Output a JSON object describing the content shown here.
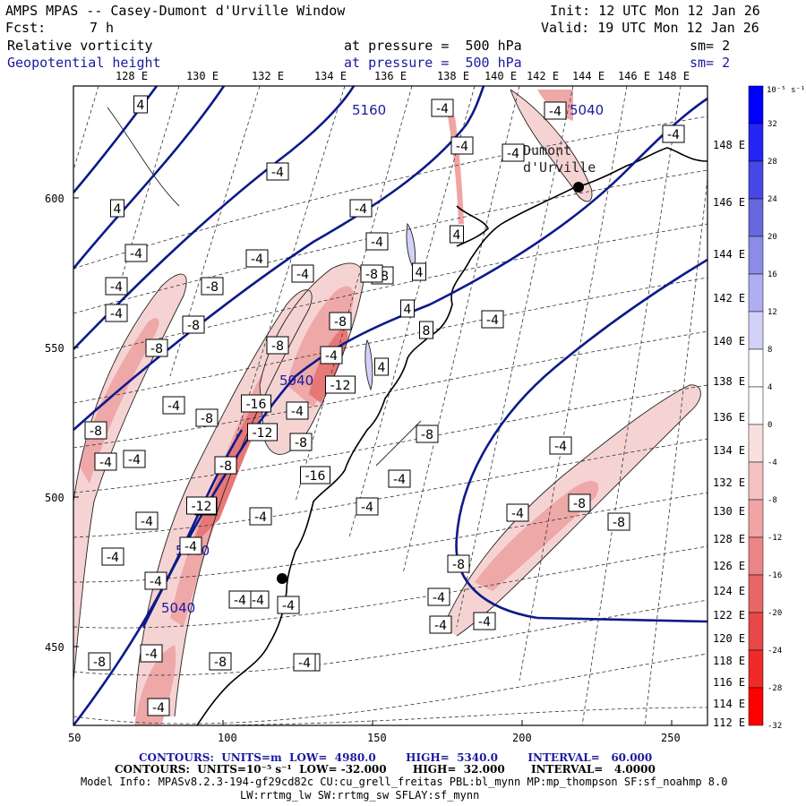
{
  "header": {
    "title": "AMPS MPAS -- Casey-Dumont d'Urville Window",
    "fcst_label": "Fcst:",
    "fcst_value": "7 h",
    "init": "Init: 12 UTC Mon 12 Jan 26",
    "valid": "Valid: 19 UTC Mon 12 Jan 26",
    "field1": "Relative vorticity",
    "field1_level": "at pressure =  500 hPa",
    "field1_sm": "sm= 2",
    "field2": "Geopotential height",
    "field2_level": "at pressure =  500 hPa",
    "field2_sm": "sm= 2"
  },
  "top_lon_labels": [
    "128 E",
    "130 E",
    "132 E",
    "134 E",
    "136 E",
    "138 E",
    "140 E",
    "142 E",
    "144 E",
    "146 E",
    "148 E"
  ],
  "right_lon_labels": [
    "148 E",
    "146 E",
    "144 E",
    "142 E",
    "140 E",
    "138 E",
    "136 E",
    "134 E",
    "132 E",
    "130 E",
    "128 E",
    "126 E",
    "124 E",
    "122 E",
    "120 E",
    "118 E",
    "116 E",
    "114 E",
    "112 E"
  ],
  "x_ticks": [
    "50",
    "100",
    "150",
    "200",
    "250"
  ],
  "y_ticks": [
    "600",
    "550",
    "500",
    "450"
  ],
  "colorbar": {
    "unit": "10⁻⁵ s⁻¹",
    "labels": [
      "32",
      "28",
      "24",
      "20",
      "16",
      "12",
      "8",
      "4",
      "0",
      "-4",
      "-8",
      "-12",
      "-16",
      "-20",
      "-24",
      "-28",
      "-32"
    ],
    "colors": [
      "#0000ff",
      "#2525f3",
      "#4747e8",
      "#6767e0",
      "#8c8ce8",
      "#aeaef0",
      "#d2d2f8",
      "#ffffff",
      "#ffffff",
      "#f8e0e0",
      "#f4c2c2",
      "#f0a4a4",
      "#ec8585",
      "#e86666",
      "#e84848",
      "#f02a2a",
      "#ff0000"
    ]
  },
  "height_labels": [
    "5160",
    "5040",
    "5040",
    "5040",
    "5040"
  ],
  "vort_labels": [
    "4",
    "-4",
    "-4",
    "4",
    "-8",
    "4",
    "-4",
    "-4",
    "-4",
    "4",
    "-4",
    "-4",
    "-4",
    "8",
    "-4",
    "-8",
    "-8",
    "-8",
    "4",
    "-4",
    "-8",
    "-8",
    "-8",
    "-4",
    "4",
    "-4",
    "-4",
    "-12",
    "-4",
    "-16",
    "-4",
    "-8",
    "-8",
    "-12",
    "-4",
    "-8",
    "-4",
    "-8",
    "-4",
    "-16",
    "-4",
    "-8",
    "-4",
    "-4",
    "-4",
    "-12",
    "-8",
    "-4",
    "-8",
    "-4",
    "-4",
    "-4",
    "-4",
    "-4",
    "-4",
    "-4",
    "-4",
    "-4",
    "-4",
    "-8",
    "-8",
    "-4",
    "-4",
    "-8",
    "-4",
    "-4",
    "-4",
    "-4",
    "-4",
    "-4"
  ],
  "places": [
    "Dumont",
    "d'Urville"
  ],
  "footer": {
    "line1": "CONTOURS:  UNITS=m  LOW=  4980.0        HIGH=  5340.0        INTERVAL=   60.000",
    "line2": "CONTOURS:  UNITS=10⁻⁵ s⁻¹  LOW= -32.000       HIGH=  32.000       INTERVAL=   4.0000",
    "line3": "Model Info: MPASv8.2.3-194-gf29cd82c CU:cu_grell_freitas PBL:bl_mynn MP:mp_thompson SF:sf_noahmp 8.0",
    "line4": "LW:rrtmg_lw SW:rrtmg_sw SFLAY:sf_mynn"
  }
}
